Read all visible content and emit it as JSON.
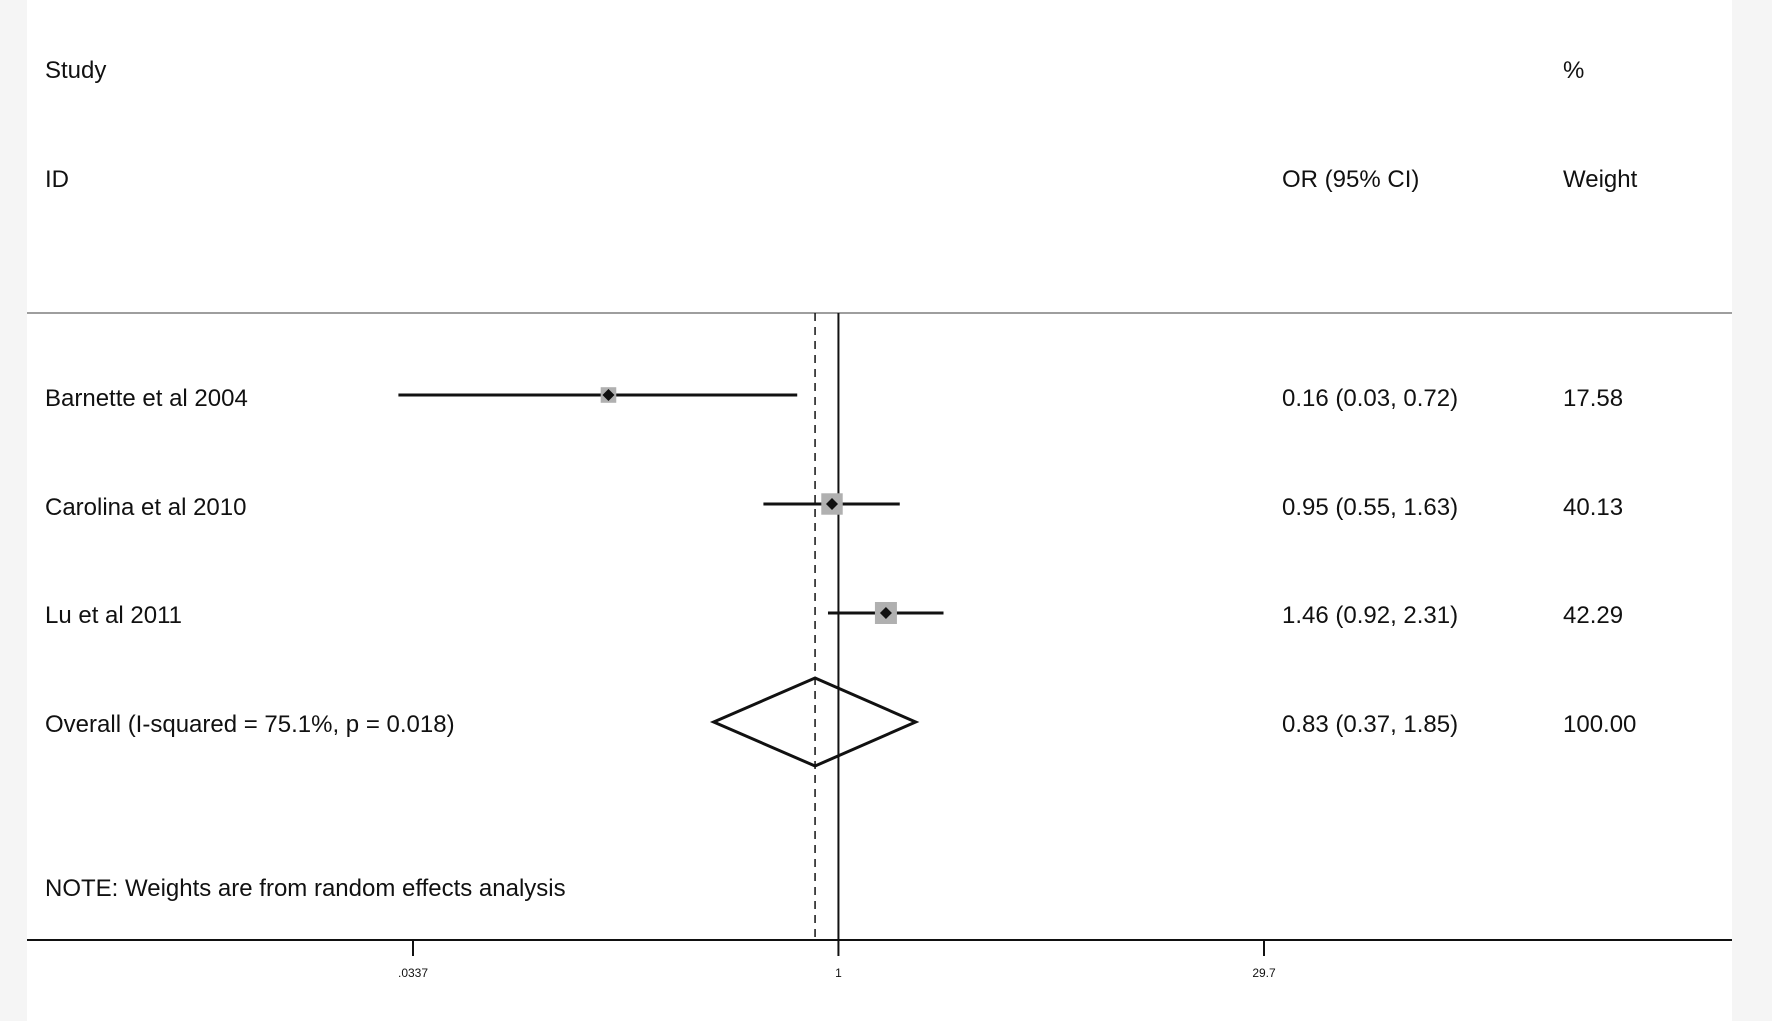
{
  "chart_data": {
    "type": "forest",
    "headers": {
      "study_line1": "Study",
      "study_line2": "ID",
      "effect": "OR (95% CI)",
      "weight_line1": "%",
      "weight_line2": "Weight"
    },
    "studies": [
      {
        "label": "Barnette et al 2004",
        "or": 0.16,
        "lower": 0.03,
        "upper": 0.72,
        "or_text": "0.16 (0.03, 0.72)",
        "weight": "17.58"
      },
      {
        "label": "Carolina et al 2010",
        "or": 0.95,
        "lower": 0.55,
        "upper": 1.63,
        "or_text": "0.95 (0.55, 1.63)",
        "weight": "40.13"
      },
      {
        "label": "Lu et al 2011",
        "or": 1.46,
        "lower": 0.92,
        "upper": 2.31,
        "or_text": "1.46 (0.92, 2.31)",
        "weight": "42.29"
      }
    ],
    "overall": {
      "label": "Overall  (I-squared = 75.1%, p = 0.018)",
      "or": 0.83,
      "lower": 0.37,
      "upper": 1.85,
      "or_text": "0.83 (0.37, 1.85)",
      "weight": "100.00"
    },
    "note": "NOTE: Weights are from random effects analysis",
    "x_scale": "log",
    "x_ticks": [
      {
        "value": 0.0337,
        "label": ".0337"
      },
      {
        "value": 1,
        "label": "1"
      },
      {
        "value": 29.7,
        "label": "29.7"
      }
    ],
    "null_line": 1,
    "colors": {
      "ink": "#111111",
      "box": "#b0b0b0",
      "rule": "#9e9e9e"
    }
  }
}
